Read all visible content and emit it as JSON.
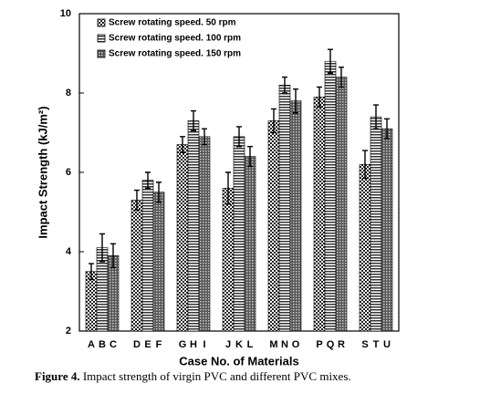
{
  "chart_data": {
    "type": "bar",
    "ylabel": "Impact Strength (kJ/m²)",
    "xlabel": "Case No. of Materials",
    "ylim": [
      2,
      10
    ],
    "yticks": [
      2,
      4,
      6,
      8,
      10
    ],
    "legend": "top-left",
    "series": [
      {
        "name": "Screw rotating speed. 50 rpm",
        "labels": [
          "A",
          "D",
          "G",
          "J",
          "M",
          "P",
          "S"
        ],
        "values": [
          3.5,
          5.3,
          6.7,
          5.6,
          7.3,
          7.9,
          6.2
        ],
        "errors": [
          0.2,
          0.25,
          0.2,
          0.4,
          0.3,
          0.25,
          0.35
        ]
      },
      {
        "name": "Screw rotating speed. 100 rpm",
        "labels": [
          "B",
          "E",
          "H",
          "K",
          "N",
          "Q",
          "T"
        ],
        "values": [
          4.1,
          5.8,
          7.3,
          6.9,
          8.2,
          8.8,
          7.4
        ],
        "errors": [
          0.35,
          0.2,
          0.25,
          0.25,
          0.2,
          0.3,
          0.3
        ]
      },
      {
        "name": "Screw rotating speed. 150 rpm",
        "labels": [
          "C",
          "F",
          "I",
          "L",
          "O",
          "R",
          "U"
        ],
        "values": [
          3.9,
          5.5,
          6.9,
          6.4,
          7.8,
          8.4,
          7.1
        ],
        "errors": [
          0.3,
          0.25,
          0.2,
          0.25,
          0.3,
          0.25,
          0.25
        ]
      }
    ]
  },
  "caption": {
    "label": "Figure 4.",
    "text": "Impact strength of virgin PVC and different PVC mixes."
  }
}
